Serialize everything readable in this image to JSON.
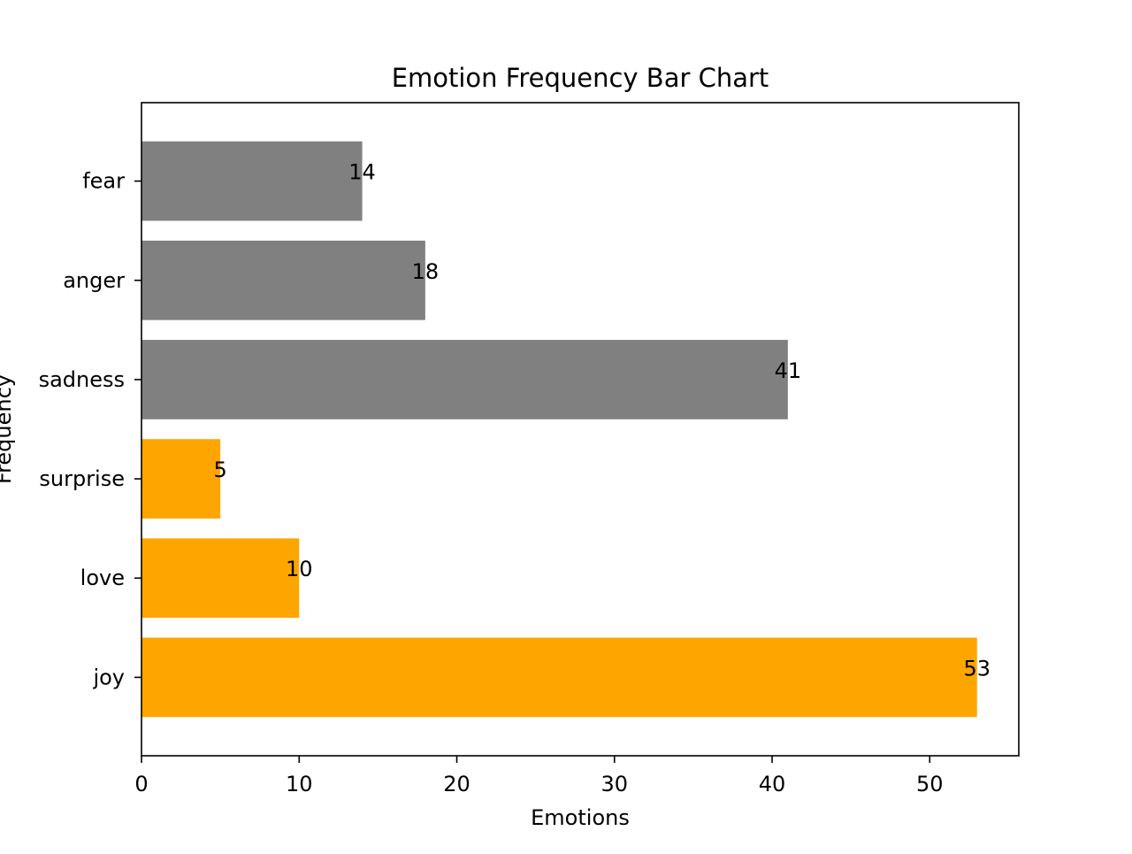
{
  "chart_data": {
    "type": "bar",
    "orientation": "horizontal",
    "title": "Emotion Frequency Bar Chart",
    "xlabel": "Emotions",
    "ylabel": "Frequency",
    "categories": [
      "joy",
      "love",
      "surprise",
      "sadness",
      "anger",
      "fear"
    ],
    "values": [
      53,
      10,
      5,
      41,
      18,
      14
    ],
    "bar_colors": [
      "#FFA500",
      "#FFA500",
      "#FFA500",
      "#808080",
      "#808080",
      "#808080"
    ],
    "xlim": [
      0,
      55.65
    ],
    "xticks": [
      0,
      10,
      20,
      30,
      40,
      50
    ],
    "grid": false,
    "legend": "none"
  }
}
